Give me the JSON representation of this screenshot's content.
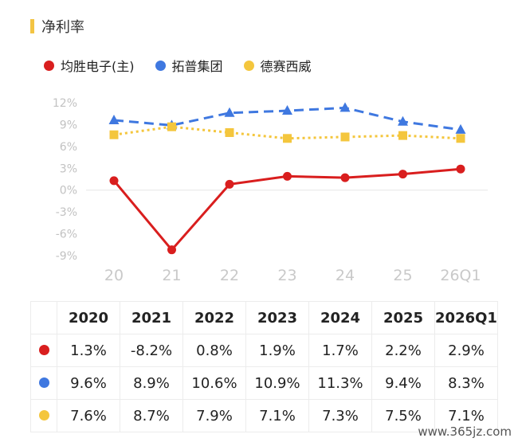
{
  "title": "净利率",
  "colors": {
    "series0": "#d91e1e",
    "series1": "#3f78e0",
    "series2": "#f4c63d",
    "accent": "#f3c443"
  },
  "chart_data": {
    "type": "line",
    "categories": [
      "20",
      "21",
      "22",
      "23",
      "24",
      "25",
      "26Q1"
    ],
    "yticks": [
      "12%",
      "9%",
      "6%",
      "3%",
      "0%",
      "-3%",
      "-6%",
      "-9%"
    ],
    "ylim": [
      -9,
      12
    ],
    "series": [
      {
        "name": "均胜电子(主)",
        "values": [
          1.3,
          -8.2,
          0.8,
          1.9,
          1.7,
          2.2,
          2.9
        ],
        "style": "solid",
        "marker": "circle"
      },
      {
        "name": "拓普集团",
        "values": [
          9.6,
          8.9,
          10.6,
          10.9,
          11.3,
          9.4,
          8.3
        ],
        "style": "dashed",
        "marker": "triangle"
      },
      {
        "name": "德赛西威",
        "values": [
          7.6,
          8.7,
          7.9,
          7.1,
          7.3,
          7.5,
          7.1
        ],
        "style": "dotted",
        "marker": "square"
      }
    ]
  },
  "table": {
    "headers": [
      "2020",
      "2021",
      "2022",
      "2023",
      "2024",
      "2025",
      "2026Q1"
    ],
    "rows": [
      [
        "1.3%",
        "-8.2%",
        "0.8%",
        "1.9%",
        "1.7%",
        "2.2%",
        "2.9%"
      ],
      [
        "9.6%",
        "8.9%",
        "10.6%",
        "10.9%",
        "11.3%",
        "9.4%",
        "8.3%"
      ],
      [
        "7.6%",
        "8.7%",
        "7.9%",
        "7.1%",
        "7.3%",
        "7.5%",
        "7.1%"
      ]
    ]
  },
  "watermark": "www.365jz.com"
}
